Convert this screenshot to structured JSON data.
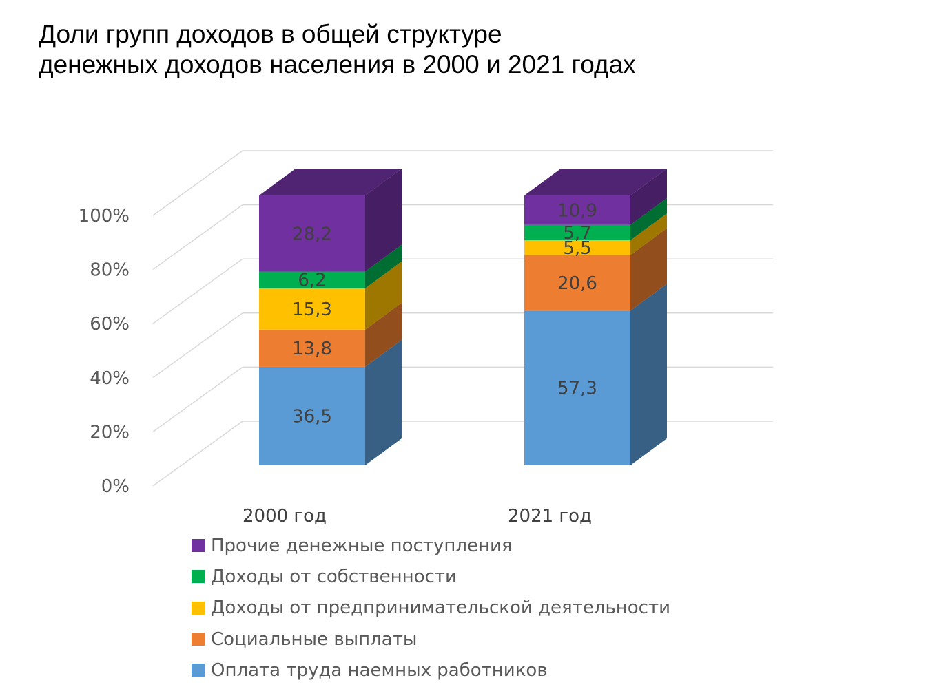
{
  "title_lines": [
    "Доли групп доходов в общей структуре",
    "денежных доходов населения в 2000 и 2021 годах"
  ],
  "chart_data": {
    "type": "bar",
    "stacked": true,
    "three_d": true,
    "title": "Доли групп доходов в общей структуре денежных доходов населения в 2000 и 2021 годах",
    "categories": [
      "2000 год",
      "2021 год"
    ],
    "y_ticks": [
      "0%",
      "20%",
      "40%",
      "60%",
      "80%",
      "100%"
    ],
    "ylim": [
      0,
      100
    ],
    "grid": true,
    "legend_position": "bottom",
    "series": [
      {
        "name": "Оплата труда наемных работников",
        "values": [
          36.5,
          57.3
        ],
        "labels": [
          "36,5",
          "57,3"
        ],
        "color": "#5B9BD5"
      },
      {
        "name": "Социальные выплаты",
        "values": [
          13.8,
          20.6
        ],
        "labels": [
          "13,8",
          "20,6"
        ],
        "color": "#ED7D31"
      },
      {
        "name": "Доходы от предпринимательской деятельности",
        "values": [
          15.3,
          5.5
        ],
        "labels": [
          "15,3",
          "5,5"
        ],
        "color": "#FFC000"
      },
      {
        "name": "Доходы от собственности",
        "values": [
          6.2,
          5.7
        ],
        "labels": [
          "6,2",
          "5,7"
        ],
        "color": "#00B050"
      },
      {
        "name": "Прочие денежные поступления",
        "values": [
          28.2,
          10.9
        ],
        "labels": [
          "28,2",
          "10,9"
        ],
        "color": "#7030A0"
      }
    ]
  }
}
